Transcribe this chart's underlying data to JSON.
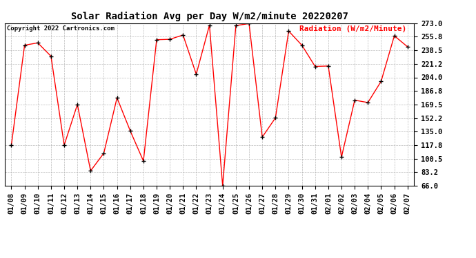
{
  "title": "Solar Radiation Avg per Day W/m2/minute 20220207",
  "copyright": "Copyright 2022 Cartronics.com",
  "legend_label": "Radiation (W/m2/Minute)",
  "dates": [
    "01/08",
    "01/09",
    "01/10",
    "01/11",
    "01/12",
    "01/13",
    "01/14",
    "01/15",
    "01/16",
    "01/17",
    "01/18",
    "01/19",
    "01/20",
    "01/21",
    "01/22",
    "01/23",
    "01/24",
    "01/25",
    "01/26",
    "01/27",
    "01/28",
    "01/29",
    "01/30",
    "01/31",
    "02/01",
    "02/02",
    "02/03",
    "02/04",
    "02/05",
    "02/06",
    "02/07"
  ],
  "values": [
    117.8,
    245.0,
    248.0,
    231.0,
    117.8,
    169.5,
    85.0,
    107.5,
    178.0,
    136.0,
    97.5,
    252.0,
    252.5,
    258.0,
    208.0,
    270.5,
    66.0,
    270.0,
    272.5,
    128.0,
    152.5,
    263.0,
    245.0,
    218.0,
    218.5,
    102.5,
    175.0,
    172.0,
    199.0,
    257.0,
    243.0
  ],
  "ylim": [
    66.0,
    273.0
  ],
  "yticks": [
    66.0,
    83.2,
    100.5,
    117.8,
    135.0,
    152.2,
    169.5,
    186.8,
    204.0,
    221.2,
    238.5,
    255.8,
    273.0
  ],
  "line_color": "red",
  "marker_color": "black",
  "background_color": "white",
  "grid_color": "#aaaaaa",
  "title_fontsize": 10,
  "copyright_fontsize": 6.5,
  "legend_fontsize": 8,
  "tick_fontsize": 7.5
}
